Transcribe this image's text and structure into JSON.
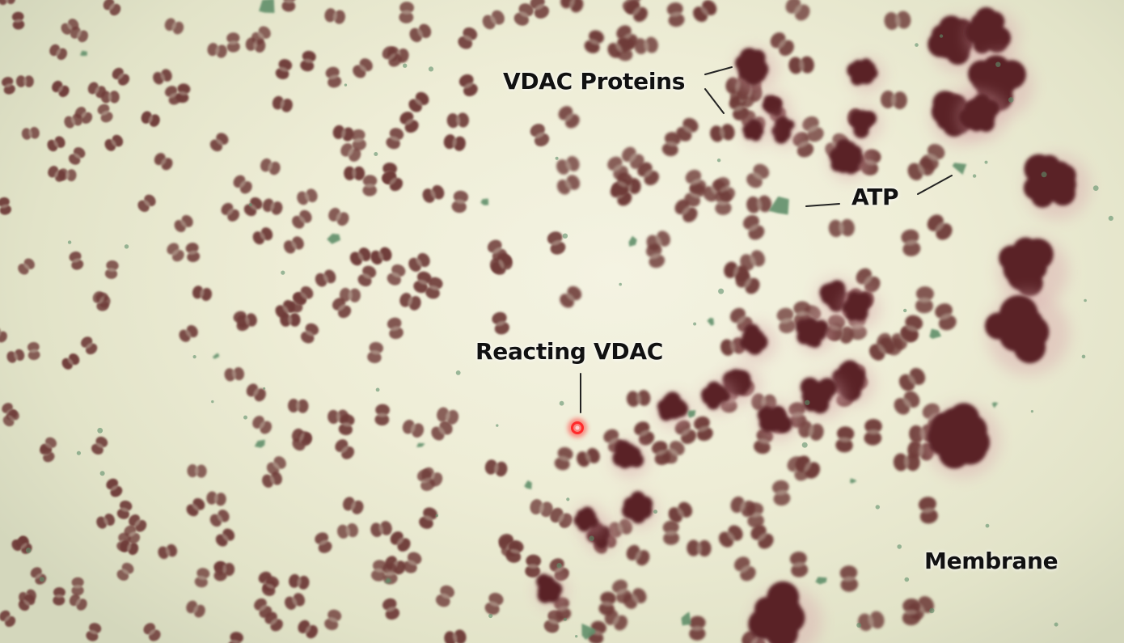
{
  "labels": {
    "vdac_proteins": "VDAC Proteins",
    "atp": "ATP",
    "reacting_vdac": "Reacting VDAC",
    "membrane": "Membrane"
  },
  "colors": {
    "membrane_background": "#eeedd6",
    "vdac_protein": "#6e3a38",
    "large_vdac_cluster": "#5a2028",
    "atp_molecule": "#5f8f6a",
    "reacting_highlight": "#ff2a2a",
    "label_text": "#111111",
    "pointer_line": "#222222"
  }
}
